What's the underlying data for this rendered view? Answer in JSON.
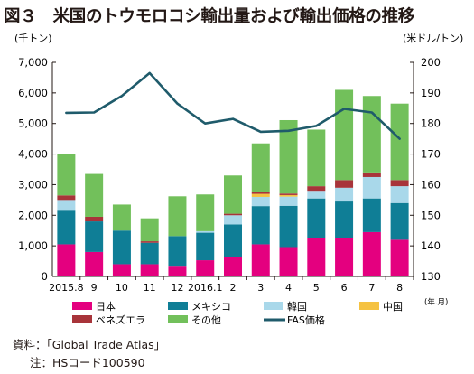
{
  "figure": {
    "title": "図３　米国のトウモロコシ輸出量および輸出価格の推移",
    "source_label": "資料：",
    "source_text": "「Global Trade Atlas」",
    "note_label": "注：",
    "note_text": "HSコード100590"
  },
  "chart_data": {
    "type": "bar",
    "stacked": true,
    "categories": [
      "2015.8",
      "9",
      "10",
      "11",
      "12",
      "2016.1",
      "2",
      "3",
      "4",
      "5",
      "6",
      "7",
      "8"
    ],
    "xlabel": "",
    "x_unit": "(年.月)",
    "y_unit_left": "(千トン)",
    "y_unit_right": "(米ドル/トン)",
    "ylim_left": [
      0,
      7000
    ],
    "yticks_left": [
      "0",
      "1,000",
      "2,000",
      "3,000",
      "4,000",
      "5,000",
      "6,000",
      "7,000"
    ],
    "ylim_right": [
      130,
      200
    ],
    "yticks_right": [
      "130",
      "140",
      "150",
      "160",
      "170",
      "180",
      "190",
      "200"
    ],
    "grid": false,
    "legend_position": "bottom",
    "series": [
      {
        "name": "日本",
        "color": "#e4007f",
        "values": [
          1050,
          800,
          400,
          400,
          320,
          530,
          650,
          1050,
          960,
          1250,
          1250,
          1450,
          1200
        ]
      },
      {
        "name": "メキシコ",
        "color": "#0f7e96",
        "values": [
          1100,
          1000,
          1100,
          700,
          1000,
          900,
          1050,
          1250,
          1350,
          1300,
          1200,
          1100,
          1200
        ]
      },
      {
        "name": "韓国",
        "color": "#a9d8ea",
        "values": [
          350,
          0,
          0,
          0,
          0,
          50,
          300,
          300,
          300,
          250,
          450,
          700,
          550
        ]
      },
      {
        "name": "中国",
        "color": "#f5c242",
        "values": [
          0,
          0,
          0,
          0,
          0,
          0,
          0,
          100,
          50,
          0,
          0,
          0,
          0
        ]
      },
      {
        "name": "ベネズエラ",
        "color": "#a8343a",
        "values": [
          150,
          150,
          0,
          50,
          0,
          0,
          50,
          50,
          50,
          150,
          250,
          150,
          200
        ]
      },
      {
        "name": "その他",
        "color": "#72c05b",
        "values": [
          1350,
          1400,
          850,
          750,
          1300,
          1200,
          1250,
          1600,
          2400,
          1850,
          2950,
          2500,
          2500
        ]
      }
    ],
    "line": {
      "name": "FAS価格",
      "color": "#1f5b6b",
      "axis": "right",
      "values": [
        183.5,
        183.6,
        189,
        196.5,
        186.5,
        180,
        181.5,
        177.3,
        177.6,
        179.2,
        184.8,
        183.6,
        175
      ]
    }
  }
}
